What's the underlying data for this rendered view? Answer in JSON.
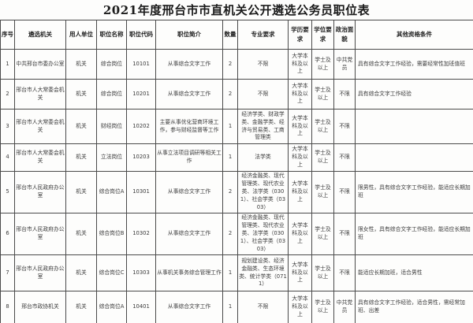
{
  "title": "2021年度邢台市市直机关公开遴选公务员职位表",
  "table": {
    "headers": [
      "序号",
      "遴选机关",
      "用人单位",
      "职位名称",
      "职位代码",
      "职位简介",
      "数量",
      "专业要求",
      "学历要求",
      "学位要求",
      "政治面貌",
      "其他资格条件"
    ],
    "rows": [
      [
        "1",
        "中共邢台市委办公室",
        "机关",
        "综合岗位",
        "10101",
        "从事综合文字工作",
        "2",
        "不限",
        "大学本科及以上",
        "学士及以上",
        "中共党员",
        "具有综合文字工作经验，需要经常性加班值班"
      ],
      [
        "2",
        "邢台市人大常委会机关",
        "机关",
        "综合岗位",
        "10201",
        "从事综合文字工作",
        "2",
        "不限",
        "大学本科及以上",
        "学士及以上",
        "不限",
        "具有综合文字工作经验"
      ],
      [
        "3",
        "邢台市人大常委会机关",
        "机关",
        "财经岗位",
        "10202",
        "主要从事优化营商环境工作，参与财经监督等工作",
        "1",
        "经济学类、财政学类、金融学类、经济与贸易类、工商管理类",
        "大学本科及以上",
        "学士及以上",
        "不限",
        ""
      ],
      [
        "4",
        "邢台市人大常委会机关",
        "机关",
        "立法岗位",
        "10203",
        "从事立法项目调研等相关工作",
        "1",
        "法学类",
        "大学本科及以上",
        "学士及以上",
        "不限",
        ""
      ],
      [
        "5",
        "邢台市人民政府办公室",
        "机关",
        "综合岗位A",
        "10301",
        "从事综合文字工作",
        "2",
        "经济金融类、现代管理类、现代农业类、法学类（0301）、社会学类（0303）",
        "大学本科及以上",
        "学士及以上",
        "不限",
        "限男性，具有综合文字工作经验，能适应长期加班"
      ],
      [
        "6",
        "邢台市人民政府办公室",
        "机关",
        "综合岗位B",
        "10302",
        "从事综合文字工作",
        "2",
        "经济金融类、现代管理类、现代农业类、法学类（0301）、社会学类（0303）",
        "大学本科及以上",
        "学士及以上",
        "不限",
        "限女性，具有综合文字工作经验，能适应长期加班"
      ],
      [
        "7",
        "邢台市人民政府办公室",
        "机关",
        "综合岗位C",
        "10303",
        "从事机关事务综合管理工作",
        "1",
        "规划建设类、经济金融类、生态环境类、统计学类（0711）",
        "大学本科及以上",
        "学士及以上",
        "不限",
        "能适应长期加班，适合男性"
      ],
      [
        "8",
        "邢台市政协机关",
        "机关",
        "综合岗位A",
        "10401",
        "从事综合文字工作",
        "1",
        "不限",
        "大学本科及以上",
        "学士及以上",
        "中共党员",
        "具有综合文字工作经验，适合男性，需经常加班、出差"
      ]
    ]
  }
}
